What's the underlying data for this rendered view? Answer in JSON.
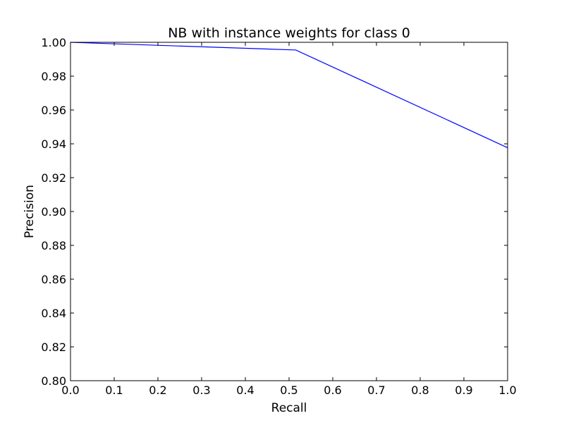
{
  "chart_data": {
    "type": "line",
    "title": "NB with instance weights for class 0",
    "xlabel": "Recall",
    "ylabel": "Precision",
    "xlim": [
      0.0,
      1.0
    ],
    "ylim": [
      0.8,
      1.0
    ],
    "xticks": [
      "0.0",
      "0.1",
      "0.2",
      "0.3",
      "0.4",
      "0.5",
      "0.6",
      "0.7",
      "0.8",
      "0.9",
      "1.0"
    ],
    "yticks": [
      "0.80",
      "0.82",
      "0.84",
      "0.86",
      "0.88",
      "0.90",
      "0.92",
      "0.94",
      "0.96",
      "0.98",
      "1.00"
    ],
    "grid": false,
    "legend": "none",
    "series": [
      {
        "color": "#0000ff",
        "x": [
          0.0,
          0.51,
          0.515,
          1.0
        ],
        "y": [
          1.0,
          0.9955,
          0.9955,
          0.9377
        ]
      }
    ]
  }
}
